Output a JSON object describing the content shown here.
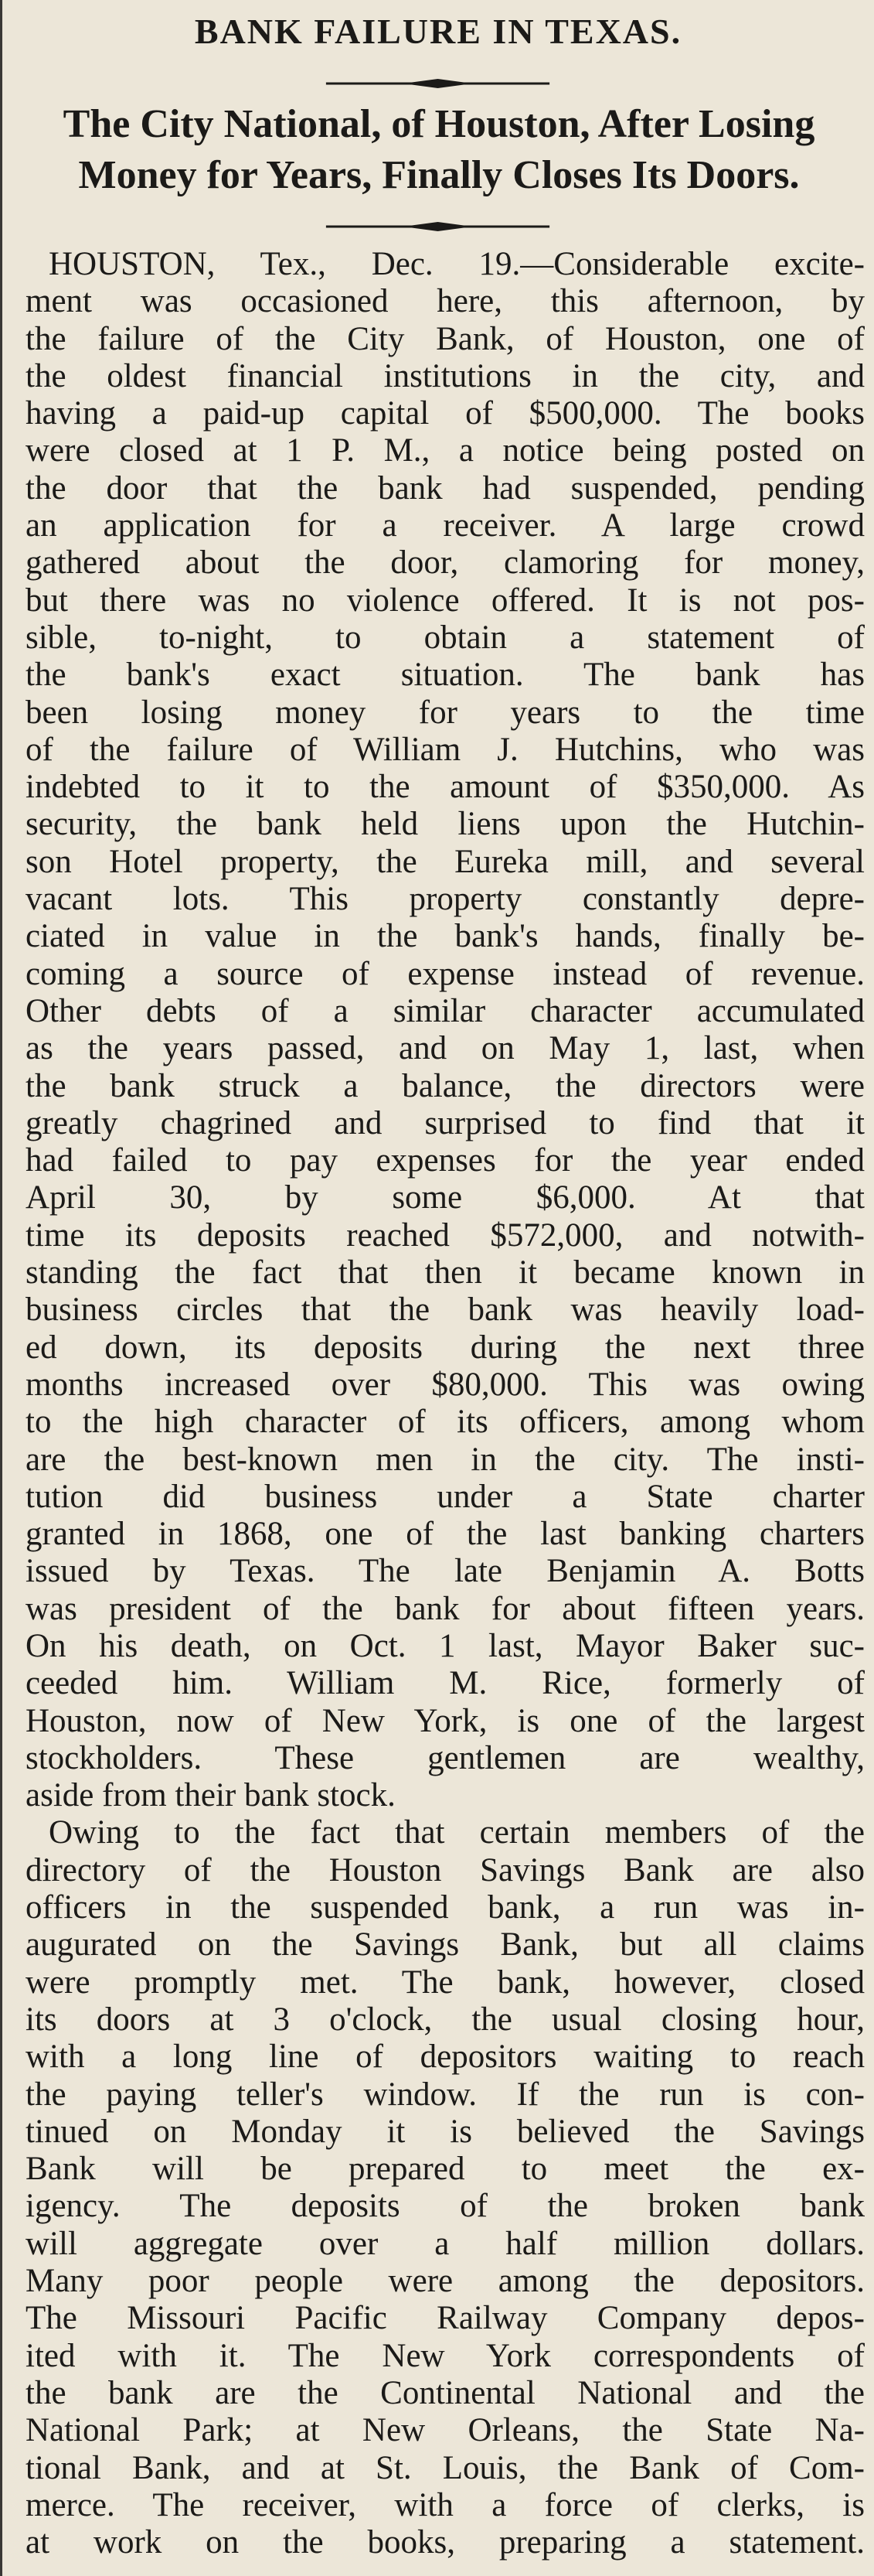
{
  "headline": "BANK FAILURE IN TEXAS.",
  "subheadline": [
    "The City National, of Houston, After Losing",
    "Money for Years, Finally Closes Its Doors."
  ],
  "paragraphs": [
    [
      "HOUSTON, Tex., Dec. 19.—Considerable excite-",
      "ment was occasioned here, this afternoon, by",
      "the failure of the City Bank, of Houston, one of",
      "the oldest financial institutions in the city, and",
      "having a paid-up capital of $500,000. The books",
      "were closed at 1 P. M., a notice being posted on",
      "the door that the bank had suspended, pending",
      "an application for a receiver. A large crowd",
      "gathered about the door, clamoring for money,",
      "but there was no violence offered. It is not pos-",
      "sible, to-night, to obtain a statement of",
      "the bank's exact situation. The bank has",
      "been losing money for years to the time",
      "of the failure of William J. Hutchins, who was",
      "indebted to it to the amount of $350,000. As",
      "security, the bank held liens upon the Hutchin-",
      "son Hotel property, the Eureka mill, and several",
      "vacant lots. This property constantly depre-",
      "ciated in value in the bank's hands, finally be-",
      "coming a source of expense instead of revenue.",
      "Other debts of a similar character accumulated",
      "as the years passed, and on May 1, last, when",
      "the bank struck a balance, the directors were",
      "greatly chagrined and surprised to find that it",
      "had failed to pay expenses for the year ended",
      "April 30, by some $6,000. At that",
      "time its deposits reached $572,000, and notwith-",
      "standing the fact that then it became known in",
      "business circles that the bank was heavily load-",
      "ed down, its deposits during the next three",
      "months increased over $80,000. This was owing",
      "to the high character of its officers, among whom",
      "are the best-known men in the city. The insti-",
      "tution did business under a State charter",
      "granted in 1868, one of the last banking charters",
      "issued by Texas. The late Benjamin A. Botts",
      "was president of the bank for about fifteen years.",
      "On his death, on Oct. 1 last, Mayor Baker suc-",
      "ceeded him. William M. Rice, formerly of",
      "Houston, now of New York, is one of the largest",
      "stockholders. These gentlemen are wealthy,",
      "aside from their bank stock."
    ],
    [
      "Owing to the fact that certain members of the",
      "directory of the Houston Savings Bank are also",
      "officers in the suspended bank, a run was in-",
      "augurated on the Savings Bank, but all claims",
      "were promptly met. The bank, however, closed",
      "its doors at 3 o'clock, the usual closing hour,",
      "with a long line of depositors waiting to reach",
      "the paying teller's window. If the run is con-",
      "tinued on Monday it is believed the Savings",
      "Bank will be prepared to meet the ex-",
      "igency. The deposits of the broken bank",
      "will aggregate over a half million dollars.",
      "Many poor people were among the depositors.",
      "The Missouri Pacific Railway Company depos-",
      "ited with it. The New York correspondents of",
      "the bank are the Continental National and the",
      "National Park; at New Orleans, the State Na-",
      "tional Bank, and at St. Louis, the Bank of Com-",
      "merce. The receiver, with a force of clerks, is",
      "at work on the books, preparing a statement."
    ]
  ]
}
